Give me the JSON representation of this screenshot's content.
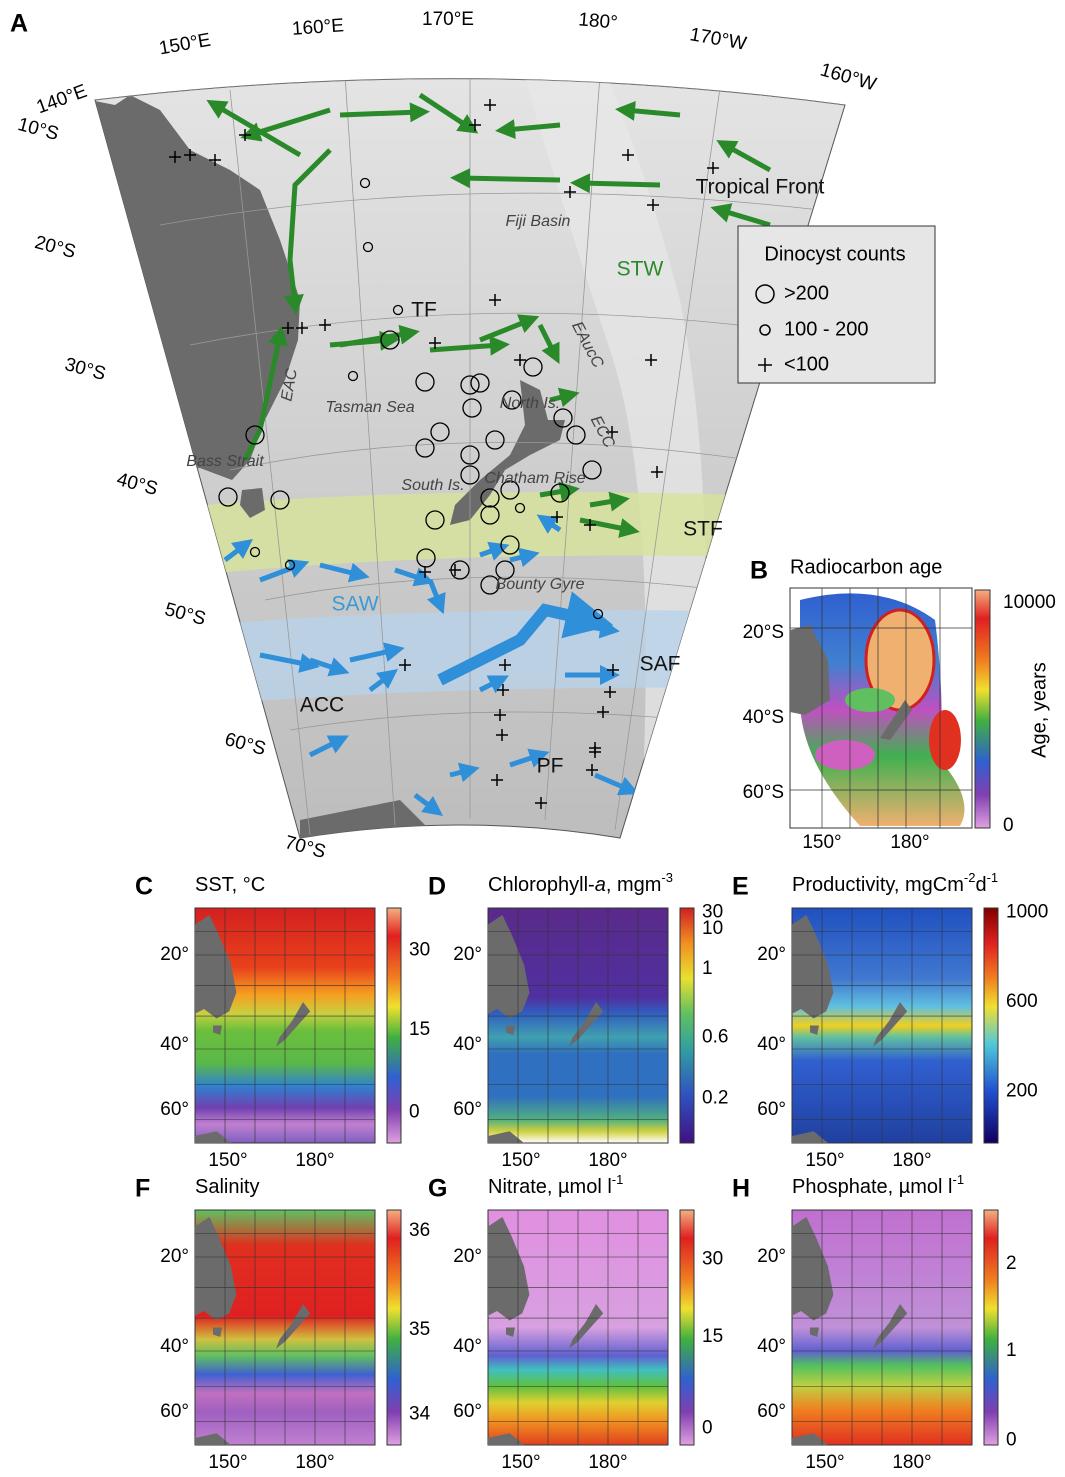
{
  "panel_a": {
    "letter": "A",
    "lon_labels": [
      "140°E",
      "150°E",
      "160°E",
      "170°E",
      "180°",
      "170°W",
      "160°W"
    ],
    "lat_labels": [
      "10°S",
      "20°S",
      "30°S",
      "40°S",
      "50°S",
      "60°S",
      "70°S"
    ],
    "place_labels": [
      "Fiji Basin",
      "Tasman Sea",
      "Bass Strait",
      "North Is.",
      "South Is.",
      "Chatham Rise",
      "Bounty Gyre",
      "EAC",
      "EAucC",
      "ECC"
    ],
    "front_labels": [
      "Tropical Front",
      "STW",
      "TF",
      "STF",
      "SAW",
      "SAF",
      "ACC",
      "PF"
    ],
    "legend": {
      "title": "Dinocyst counts",
      "items": [
        ">200",
        "100 - 200",
        "<100"
      ]
    }
  },
  "panel_b": {
    "letter": "B",
    "title": "Radiocarbon age",
    "colorbar_label": "Age, years",
    "colorbar_ticks": [
      "10000",
      "0"
    ],
    "lat_labels": [
      "20°S",
      "40°S",
      "60°S"
    ],
    "lon_labels": [
      "150°",
      "180°"
    ]
  },
  "panels": [
    {
      "letter": "C",
      "title": [
        {
          "text": "SST, °C"
        }
      ],
      "colorbar_ticks": [
        "30",
        "15",
        "0"
      ],
      "lat_labels": [
        "20°",
        "40°",
        "60°"
      ],
      "lon_labels": [
        "150°",
        "180°"
      ]
    },
    {
      "letter": "D",
      "title": [
        {
          "text": "Chlorophyll-"
        },
        {
          "text": "a",
          "style": "italic"
        },
        {
          "text": ", mgm"
        },
        {
          "text": "-3",
          "style": "sup"
        }
      ],
      "colorbar_ticks": [
        "30",
        "10",
        "1",
        "0.6",
        "0.2"
      ],
      "lat_labels": [
        "20°",
        "40°",
        "60°"
      ],
      "lon_labels": [
        "150°",
        "180°"
      ]
    },
    {
      "letter": "E",
      "title": [
        {
          "text": "Productivity, mgCm"
        },
        {
          "text": "-2",
          "style": "sup"
        },
        {
          "text": "d"
        },
        {
          "text": "-1",
          "style": "sup"
        }
      ],
      "colorbar_ticks": [
        "1000",
        "600",
        "200"
      ],
      "lat_labels": [
        "20°",
        "40°",
        "60°"
      ],
      "lon_labels": [
        "150°",
        "180°"
      ]
    },
    {
      "letter": "F",
      "title": [
        {
          "text": "Salinity"
        }
      ],
      "colorbar_ticks": [
        "36",
        "35",
        "34"
      ],
      "lat_labels": [
        "20°",
        "40°",
        "60°"
      ],
      "lon_labels": [
        "150°",
        "180°"
      ]
    },
    {
      "letter": "G",
      "title": [
        {
          "text": "Nitrate, µmol l"
        },
        {
          "text": "-1",
          "style": "sup"
        }
      ],
      "colorbar_ticks": [
        "30",
        "15",
        "0"
      ],
      "lat_labels": [
        "20°",
        "40°",
        "60°"
      ],
      "lon_labels": [
        "150°",
        "180°"
      ]
    },
    {
      "letter": "H",
      "title": [
        {
          "text": "Phosphate, µmol l"
        },
        {
          "text": "-1",
          "style": "sup"
        }
      ],
      "colorbar_ticks": [
        "2",
        "1",
        "0"
      ],
      "lat_labels": [
        "20°",
        "40°",
        "60°"
      ],
      "lon_labels": [
        "150°",
        "180°"
      ]
    }
  ]
}
